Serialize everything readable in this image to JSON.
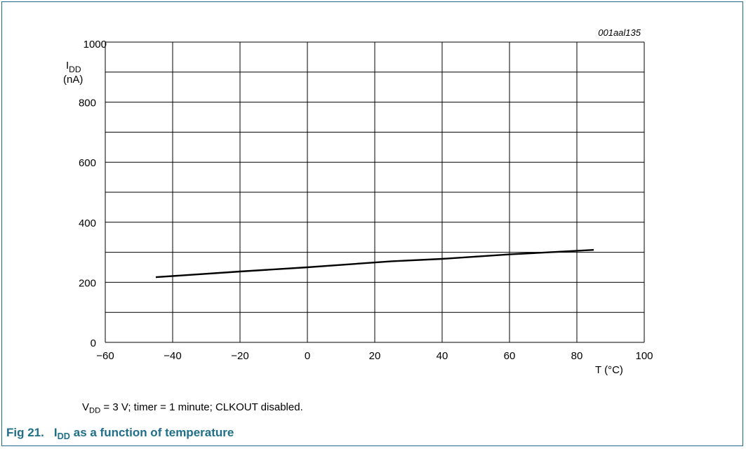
{
  "figure": {
    "code": "001aal135",
    "number": "Fig 21.",
    "caption_main": "I",
    "caption_sub": "DD",
    "caption_rest": " as a function of temperature"
  },
  "note": {
    "v": "V",
    "v_sub": "DD",
    "rest": " = 3 V; timer = 1 minute; CLKOUT disabled."
  },
  "chart_data": {
    "type": "line",
    "title": "",
    "xlabel": "T (°C)",
    "ylabel_main": "I",
    "ylabel_sub": "DD",
    "ylabel_unit": "(nA)",
    "xlim": [
      -60,
      100
    ],
    "ylim": [
      0,
      1000
    ],
    "x_ticks": [
      -60,
      -40,
      -20,
      0,
      20,
      40,
      60,
      80,
      100
    ],
    "x_tick_labels": [
      "−60",
      "−40",
      "−20",
      "0",
      "20",
      "40",
      "60",
      "80",
      "100"
    ],
    "x_grid": [
      -60,
      -40,
      -20,
      0,
      20,
      40,
      60,
      80,
      100
    ],
    "y_labeled_ticks": [
      0,
      200,
      400,
      600,
      800,
      1000
    ],
    "y_grid": [
      0,
      100,
      200,
      300,
      400,
      500,
      600,
      700,
      800,
      900,
      1000
    ],
    "grid": true,
    "series": [
      {
        "x": [
          -45,
          -20,
          0,
          25,
          40,
          60,
          85
        ],
        "y": [
          217,
          236,
          250,
          270,
          278,
          293,
          308
        ]
      }
    ]
  }
}
